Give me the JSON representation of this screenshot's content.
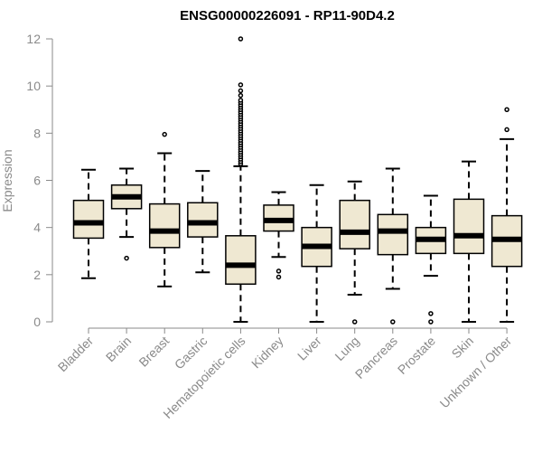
{
  "chart_data": {
    "type": "boxplot",
    "title": "ENSG00000226091 - RP11-90D4.2",
    "xlabel": "",
    "ylabel": "Expression",
    "ylim": [
      0,
      12
    ],
    "yticks": [
      0,
      2,
      4,
      6,
      8,
      10,
      12
    ],
    "grid": false,
    "colors": {
      "box_fill": "#efe8d2",
      "box_stroke": "#000000",
      "axis": "#8a8a8a",
      "tick_text": "#8a8a8a",
      "title": "#000000"
    },
    "categories": [
      "Bladder",
      "Brain",
      "Breast",
      "Gastric",
      "Hematopoietic cells",
      "Kidney",
      "Liver",
      "Lung",
      "Pancreas",
      "Prostate",
      "Skin",
      "Unknown / Other"
    ],
    "boxes": [
      {
        "category": "Bladder",
        "whisker_low": 1.85,
        "q1": 3.55,
        "median": 4.2,
        "q3": 5.15,
        "whisker_high": 6.45,
        "outliers": []
      },
      {
        "category": "Brain",
        "whisker_low": 3.6,
        "q1": 4.8,
        "median": 5.3,
        "q3": 5.8,
        "whisker_high": 6.5,
        "outliers": [
          2.7
        ]
      },
      {
        "category": "Breast",
        "whisker_low": 1.5,
        "q1": 3.15,
        "median": 3.85,
        "q3": 5.0,
        "whisker_high": 7.15,
        "outliers": [
          7.95
        ]
      },
      {
        "category": "Gastric",
        "whisker_low": 2.1,
        "q1": 3.6,
        "median": 4.2,
        "q3": 5.05,
        "whisker_high": 6.4,
        "outliers": []
      },
      {
        "category": "Hematopoietic cells",
        "whisker_low": 0.0,
        "q1": 1.6,
        "median": 2.4,
        "q3": 3.65,
        "whisker_high": 6.6,
        "outliers": [
          6.7,
          6.8,
          6.9,
          7.0,
          7.1,
          7.2,
          7.3,
          7.4,
          7.5,
          7.6,
          7.7,
          7.8,
          7.9,
          8.0,
          8.1,
          8.2,
          8.3,
          8.4,
          8.5,
          8.6,
          8.7,
          8.8,
          8.9,
          9.0,
          9.1,
          9.2,
          9.3,
          9.4,
          9.6,
          9.8,
          10.05,
          12.0
        ]
      },
      {
        "category": "Kidney",
        "whisker_low": 2.75,
        "q1": 3.85,
        "median": 4.3,
        "q3": 4.95,
        "whisker_high": 5.5,
        "outliers": [
          2.15,
          1.9
        ]
      },
      {
        "category": "Liver",
        "whisker_low": 0.0,
        "q1": 2.35,
        "median": 3.2,
        "q3": 4.0,
        "whisker_high": 5.8,
        "outliers": []
      },
      {
        "category": "Lung",
        "whisker_low": 1.15,
        "q1": 3.1,
        "median": 3.8,
        "q3": 5.15,
        "whisker_high": 5.95,
        "outliers": [
          0.0
        ]
      },
      {
        "category": "Pancreas",
        "whisker_low": 1.4,
        "q1": 2.85,
        "median": 3.85,
        "q3": 4.55,
        "whisker_high": 6.5,
        "outliers": [
          0.0
        ]
      },
      {
        "category": "Prostate",
        "whisker_low": 1.95,
        "q1": 2.9,
        "median": 3.5,
        "q3": 4.0,
        "whisker_high": 5.35,
        "outliers": [
          0.35,
          0.0
        ]
      },
      {
        "category": "Skin",
        "whisker_low": 0.0,
        "q1": 2.9,
        "median": 3.65,
        "q3": 5.2,
        "whisker_high": 6.8,
        "outliers": []
      },
      {
        "category": "Unknown / Other",
        "whisker_low": 0.0,
        "q1": 2.35,
        "median": 3.5,
        "q3": 4.5,
        "whisker_high": 7.75,
        "outliers": [
          8.15,
          9.0
        ]
      }
    ]
  }
}
